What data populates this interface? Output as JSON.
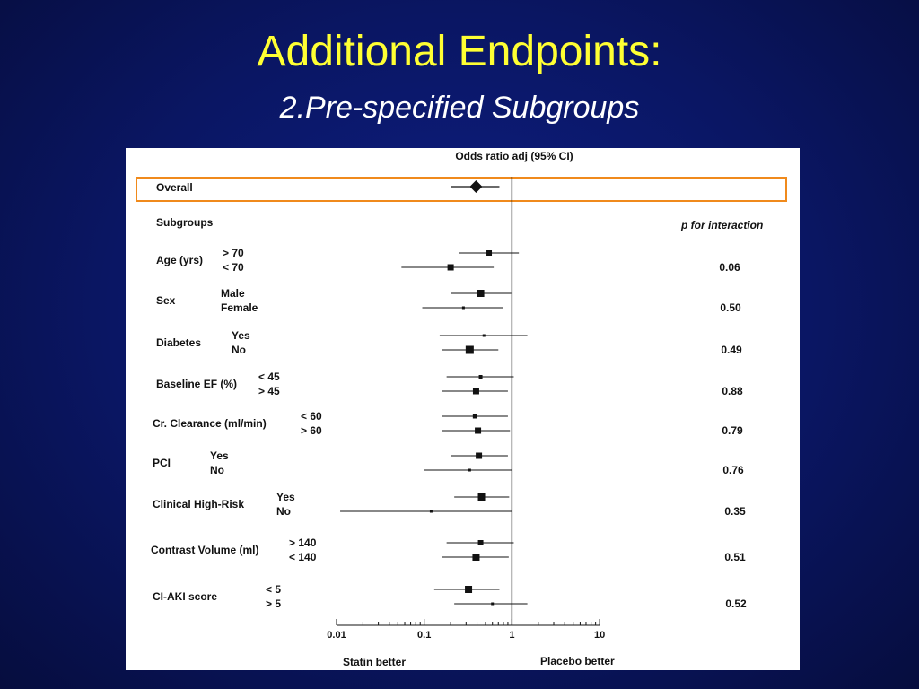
{
  "slide": {
    "title": "Additional Endpoints:",
    "subtitle": "2.Pre-specified Subgroups"
  },
  "chart_data": {
    "type": "forest",
    "title": "Odds ratio adj (95% CI)",
    "x_scale": "log",
    "xlim": [
      0.01,
      10
    ],
    "x_ticks": [
      {
        "value": 0.01,
        "label": "0.01"
      },
      {
        "value": 0.1,
        "label": "0.1"
      },
      {
        "value": 1,
        "label": "1"
      },
      {
        "value": 10,
        "label": "10"
      }
    ],
    "reference_line": 1,
    "left_label": "Statin better",
    "right_label": "Placebo better",
    "subgroups_header": "Subgroups",
    "p_header": "p for interaction",
    "highlight_color": "#f08a1c",
    "overall": {
      "label": "Overall",
      "or": 0.39,
      "lo": 0.2,
      "hi": 0.72
    },
    "groups": [
      {
        "name": "Age (yrs)",
        "p": "0.06",
        "rows": [
          {
            "label": "> 70",
            "or": 0.55,
            "lo": 0.25,
            "hi": 1.2,
            "size": 6
          },
          {
            "label": "< 70",
            "or": 0.2,
            "lo": 0.055,
            "hi": 0.62,
            "size": 7
          }
        ]
      },
      {
        "name": "Sex",
        "p": "0.50",
        "rows": [
          {
            "label": "Male",
            "or": 0.44,
            "lo": 0.2,
            "hi": 0.98,
            "size": 8
          },
          {
            "label": "Female",
            "or": 0.28,
            "lo": 0.095,
            "hi": 0.8,
            "size": 3
          }
        ]
      },
      {
        "name": "Diabetes",
        "p": "0.49",
        "rows": [
          {
            "label": "Yes",
            "or": 0.48,
            "lo": 0.15,
            "hi": 1.5,
            "size": 3
          },
          {
            "label": "No",
            "or": 0.33,
            "lo": 0.16,
            "hi": 0.7,
            "size": 9
          }
        ]
      },
      {
        "name": "Baseline EF (%)",
        "p": "0.88",
        "rows": [
          {
            "label": "< 45",
            "or": 0.44,
            "lo": 0.18,
            "hi": 1.05,
            "size": 4
          },
          {
            "label": "> 45",
            "or": 0.39,
            "lo": 0.16,
            "hi": 0.9,
            "size": 7
          }
        ]
      },
      {
        "name": "Cr. Clearance (ml/min)",
        "p": "0.79",
        "rows": [
          {
            "label": "< 60",
            "or": 0.38,
            "lo": 0.16,
            "hi": 0.9,
            "size": 5
          },
          {
            "label": "> 60",
            "or": 0.41,
            "lo": 0.16,
            "hi": 0.95,
            "size": 7
          }
        ]
      },
      {
        "name": "PCI",
        "p": "0.76",
        "rows": [
          {
            "label": "Yes",
            "or": 0.42,
            "lo": 0.2,
            "hi": 0.9,
            "size": 7
          },
          {
            "label": "No",
            "or": 0.33,
            "lo": 0.1,
            "hi": 1.0,
            "size": 3
          }
        ]
      },
      {
        "name": "Clinical High-Risk",
        "p": "0.35",
        "rows": [
          {
            "label": "Yes",
            "or": 0.45,
            "lo": 0.22,
            "hi": 0.93,
            "size": 8
          },
          {
            "label": "No",
            "or": 0.12,
            "lo": 0.011,
            "hi": 1.0,
            "size": 3
          }
        ]
      },
      {
        "name": "Contrast Volume (ml)",
        "p": "0.51",
        "rows": [
          {
            "label": "> 140",
            "or": 0.44,
            "lo": 0.18,
            "hi": 1.05,
            "size": 6
          },
          {
            "label": "< 140",
            "or": 0.39,
            "lo": 0.16,
            "hi": 0.92,
            "size": 8
          }
        ]
      },
      {
        "name": "CI-AKI score",
        "p": "0.52",
        "rows": [
          {
            "label": "< 5",
            "or": 0.32,
            "lo": 0.13,
            "hi": 0.72,
            "size": 8
          },
          {
            "label": "> 5",
            "or": 0.6,
            "lo": 0.22,
            "hi": 1.5,
            "size": 3
          }
        ]
      }
    ]
  }
}
